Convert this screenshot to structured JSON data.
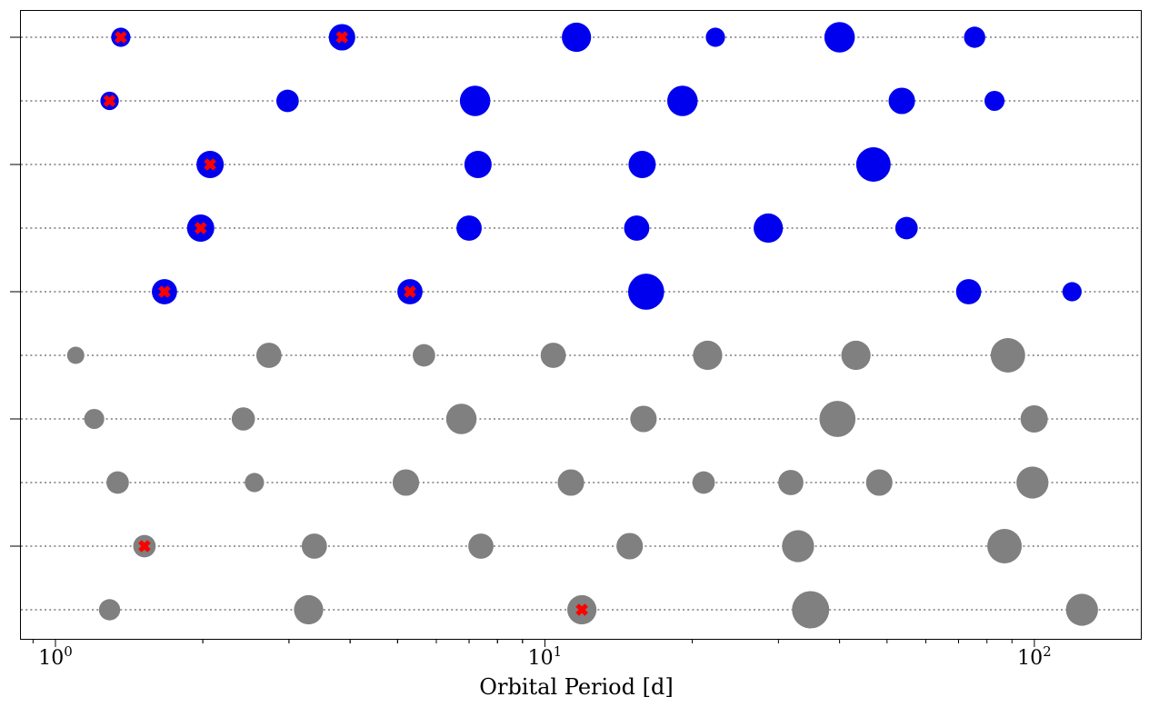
{
  "chart_data": {
    "type": "scatter",
    "xlabel": "Orbital Period [d]",
    "x_scale": "log",
    "xlim": [
      0.85,
      165
    ],
    "x_ticks": [
      {
        "value": 1,
        "base": "10",
        "exp": "0"
      },
      {
        "value": 10,
        "base": "10",
        "exp": "1"
      },
      {
        "value": 100,
        "base": "10",
        "exp": "2"
      }
    ],
    "colors": {
      "highlight": "#0000ee",
      "other": "#808080",
      "marker": "#ff0000",
      "grid": "#7a7a7a"
    },
    "rows": [
      {
        "color": "highlight",
        "points": [
          {
            "x": 1.36,
            "size": 0.3,
            "mark": true
          },
          {
            "x": 3.85,
            "size": 0.48,
            "mark": true
          },
          {
            "x": 11.6,
            "size": 0.55
          },
          {
            "x": 22.3,
            "size": 0.3
          },
          {
            "x": 40.0,
            "size": 0.58
          },
          {
            "x": 75.5,
            "size": 0.35
          }
        ]
      },
      {
        "color": "highlight",
        "points": [
          {
            "x": 1.29,
            "size": 0.28,
            "mark": true
          },
          {
            "x": 2.98,
            "size": 0.38
          },
          {
            "x": 7.2,
            "size": 0.58
          },
          {
            "x": 19.1,
            "size": 0.58
          },
          {
            "x": 53.6,
            "size": 0.48
          },
          {
            "x": 82.9,
            "size": 0.32
          }
        ]
      },
      {
        "color": "highlight",
        "points": [
          {
            "x": 2.07,
            "size": 0.5,
            "mark": true
          },
          {
            "x": 7.3,
            "size": 0.5
          },
          {
            "x": 15.8,
            "size": 0.5
          },
          {
            "x": 46.9,
            "size": 0.68
          }
        ]
      },
      {
        "color": "highlight",
        "points": [
          {
            "x": 1.98,
            "size": 0.5,
            "mark": true
          },
          {
            "x": 7.0,
            "size": 0.45
          },
          {
            "x": 15.4,
            "size": 0.45
          },
          {
            "x": 28.6,
            "size": 0.55
          },
          {
            "x": 54.8,
            "size": 0.38
          }
        ]
      },
      {
        "color": "highlight",
        "points": [
          {
            "x": 1.67,
            "size": 0.45,
            "mark": true
          },
          {
            "x": 5.3,
            "size": 0.45,
            "mark": true
          },
          {
            "x": 16.1,
            "size": 0.72
          },
          {
            "x": 73.4,
            "size": 0.45
          },
          {
            "x": 119.4,
            "size": 0.3
          }
        ]
      },
      {
        "color": "other",
        "points": [
          {
            "x": 1.1,
            "size": 0.25
          },
          {
            "x": 2.73,
            "size": 0.45
          },
          {
            "x": 5.66,
            "size": 0.38
          },
          {
            "x": 10.4,
            "size": 0.45
          },
          {
            "x": 21.5,
            "size": 0.55
          },
          {
            "x": 43.2,
            "size": 0.55
          },
          {
            "x": 88.3,
            "size": 0.68
          }
        ]
      },
      {
        "color": "other",
        "points": [
          {
            "x": 1.2,
            "size": 0.32
          },
          {
            "x": 2.42,
            "size": 0.4
          },
          {
            "x": 6.75,
            "size": 0.58
          },
          {
            "x": 15.9,
            "size": 0.48
          },
          {
            "x": 39.6,
            "size": 0.72
          },
          {
            "x": 99.9,
            "size": 0.5
          }
        ]
      },
      {
        "color": "other",
        "points": [
          {
            "x": 1.34,
            "size": 0.38
          },
          {
            "x": 2.55,
            "size": 0.3
          },
          {
            "x": 5.2,
            "size": 0.48
          },
          {
            "x": 11.3,
            "size": 0.48
          },
          {
            "x": 21.1,
            "size": 0.38
          },
          {
            "x": 31.8,
            "size": 0.45
          },
          {
            "x": 48.2,
            "size": 0.48
          },
          {
            "x": 99.1,
            "size": 0.62
          }
        ]
      },
      {
        "color": "other",
        "points": [
          {
            "x": 1.52,
            "size": 0.38,
            "mark": true
          },
          {
            "x": 3.38,
            "size": 0.45
          },
          {
            "x": 7.4,
            "size": 0.45
          },
          {
            "x": 14.9,
            "size": 0.48
          },
          {
            "x": 32.9,
            "size": 0.62
          },
          {
            "x": 86.9,
            "size": 0.68
          }
        ]
      },
      {
        "color": "other",
        "points": [
          {
            "x": 1.29,
            "size": 0.35
          },
          {
            "x": 3.29,
            "size": 0.55
          },
          {
            "x": 11.9,
            "size": 0.55,
            "mark": true
          },
          {
            "x": 34.9,
            "size": 0.75
          },
          {
            "x": 125.1,
            "size": 0.62
          }
        ]
      }
    ]
  }
}
